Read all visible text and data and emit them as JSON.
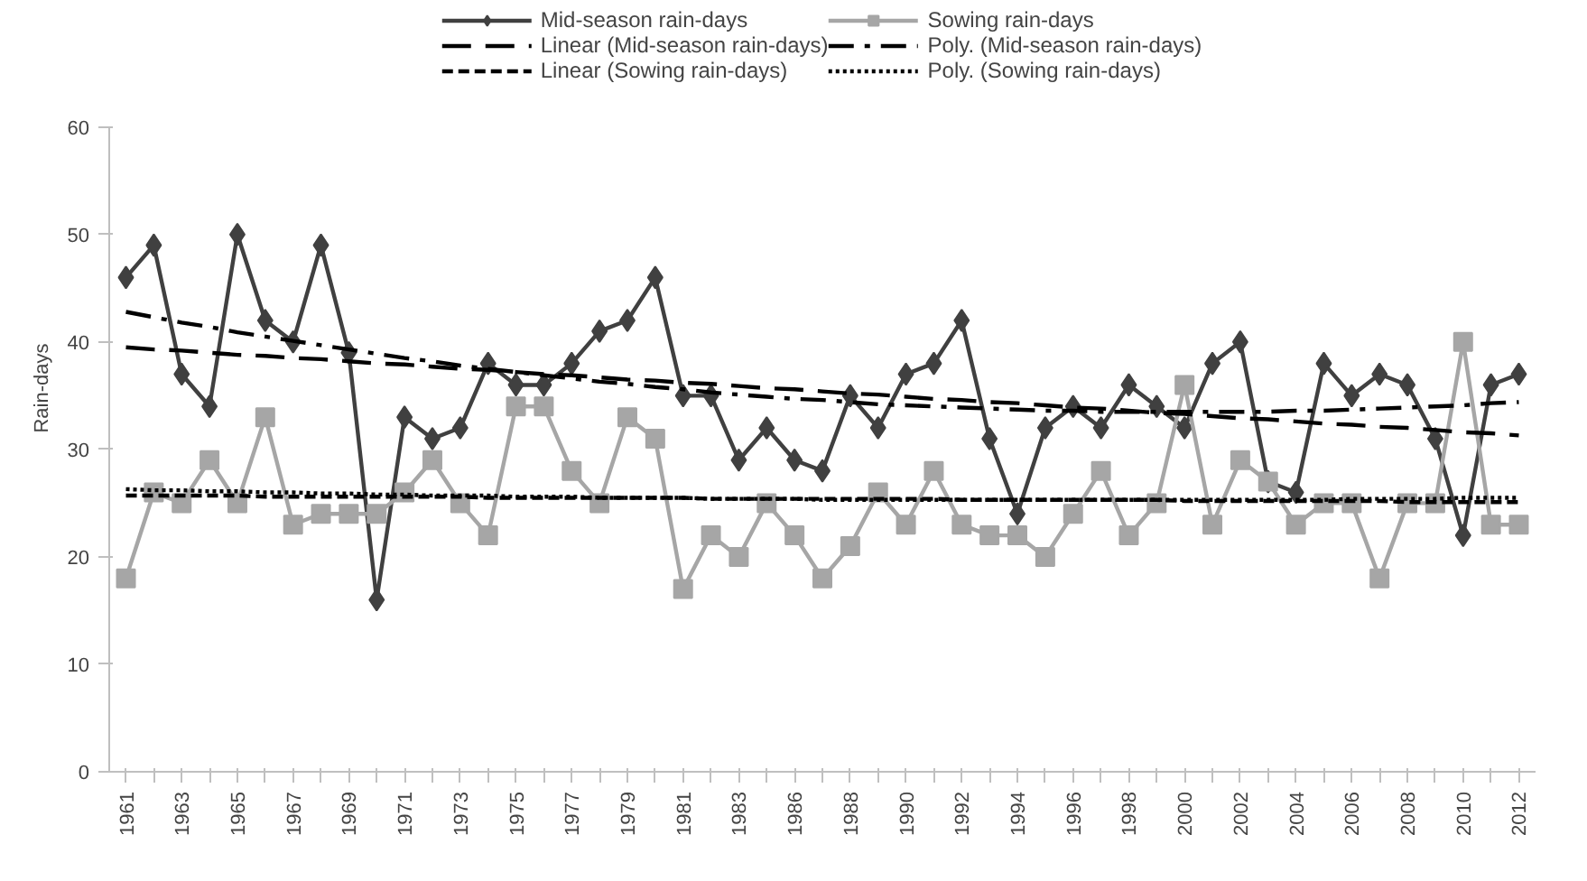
{
  "chart_data": {
    "type": "line",
    "ylabel": "Rain-days",
    "categories": [
      "1961",
      null,
      "1963",
      null,
      "1965",
      null,
      "1967",
      null,
      "1969",
      null,
      "1971",
      null,
      "1973",
      null,
      "1975",
      null,
      "1977",
      null,
      "1979",
      null,
      "1981",
      null,
      "1983",
      null,
      "1986",
      null,
      "1988",
      null,
      "1990",
      null,
      "1992",
      null,
      "1994",
      null,
      "1996",
      null,
      "1998",
      null,
      "2000",
      null,
      "2002",
      null,
      "2004",
      null,
      "2006",
      null,
      "2008",
      null,
      "2010",
      null,
      "2012"
    ],
    "series": [
      {
        "name": "Mid-season rain-days",
        "color": "#404040",
        "marker": "diamond",
        "line_style": "solid",
        "values": [
          46,
          49,
          37,
          34,
          50,
          42,
          40,
          49,
          39,
          16,
          33,
          31,
          32,
          38,
          36,
          36,
          38,
          41,
          42,
          46,
          35,
          35,
          29,
          32,
          29,
          28,
          35,
          32,
          37,
          38,
          42,
          31,
          24,
          32,
          34,
          32,
          36,
          34,
          32,
          38,
          40,
          27,
          26,
          38,
          35,
          37,
          36,
          31,
          22,
          36,
          37
        ]
      },
      {
        "name": "Sowing rain-days",
        "color": "#a6a6a6",
        "marker": "square",
        "line_style": "solid",
        "values": [
          18,
          26,
          25,
          29,
          25,
          33,
          23,
          24,
          24,
          24,
          26,
          29,
          25,
          22,
          34,
          34,
          28,
          25,
          33,
          31,
          17,
          22,
          20,
          25,
          22,
          18,
          21,
          26,
          23,
          28,
          23,
          22,
          22,
          20,
          24,
          28,
          22,
          25,
          36,
          23,
          29,
          27,
          23,
          25,
          25,
          18,
          25,
          25,
          40,
          23,
          23
        ]
      },
      {
        "name": "Linear (Mid-season rain-days)",
        "color": "#000000",
        "marker": "none",
        "line_style": "longdash",
        "values": [
          39.5,
          39.3,
          39.2,
          39.0,
          38.8,
          38.7,
          38.5,
          38.4,
          38.2,
          38.0,
          37.9,
          37.7,
          37.5,
          37.4,
          37.2,
          37.0,
          36.9,
          36.7,
          36.5,
          36.4,
          36.2,
          36.1,
          35.9,
          35.7,
          35.6,
          35.4,
          35.2,
          35.1,
          34.9,
          34.7,
          34.6,
          34.4,
          34.3,
          34.1,
          33.9,
          33.8,
          33.6,
          33.4,
          33.3,
          33.1,
          32.9,
          32.8,
          32.6,
          32.4,
          32.3,
          32.1,
          32.0,
          31.8,
          31.6,
          31.5,
          31.3
        ]
      },
      {
        "name": "Poly. (Mid-season rain-days)",
        "color": "#000000",
        "marker": "none",
        "line_style": "dashdot",
        "values": [
          42.8,
          42.3,
          41.8,
          41.4,
          40.9,
          40.5,
          40.1,
          39.7,
          39.3,
          38.9,
          38.5,
          38.2,
          37.8,
          37.5,
          37.2,
          36.9,
          36.6,
          36.3,
          36.1,
          35.8,
          35.6,
          35.3,
          35.1,
          34.9,
          34.7,
          34.6,
          34.4,
          34.2,
          34.1,
          34.0,
          33.9,
          33.8,
          33.7,
          33.6,
          33.6,
          33.5,
          33.5,
          33.5,
          33.5,
          33.5,
          33.5,
          33.5,
          33.6,
          33.6,
          33.7,
          33.8,
          33.9,
          34.0,
          34.1,
          34.3,
          34.4
        ]
      },
      {
        "name": "Linear (Sowing rain-days)",
        "color": "#000000",
        "marker": "none",
        "line_style": "dashed",
        "values": [
          25.7,
          25.7,
          25.7,
          25.7,
          25.7,
          25.6,
          25.6,
          25.6,
          25.6,
          25.6,
          25.6,
          25.6,
          25.6,
          25.5,
          25.5,
          25.5,
          25.5,
          25.5,
          25.5,
          25.5,
          25.5,
          25.4,
          25.4,
          25.4,
          25.4,
          25.4,
          25.4,
          25.4,
          25.4,
          25.4,
          25.3,
          25.3,
          25.3,
          25.3,
          25.3,
          25.3,
          25.3,
          25.3,
          25.2,
          25.2,
          25.2,
          25.2,
          25.2,
          25.2,
          25.2,
          25.2,
          25.1,
          25.1,
          25.1,
          25.1,
          25.1
        ]
      },
      {
        "name": "Poly. (Sowing rain-days)",
        "color": "#000000",
        "marker": "none",
        "line_style": "dotted",
        "values": [
          26.3,
          26.2,
          26.2,
          26.1,
          26.1,
          26.0,
          26.0,
          25.9,
          25.9,
          25.8,
          25.8,
          25.7,
          25.7,
          25.7,
          25.6,
          25.6,
          25.6,
          25.5,
          25.5,
          25.5,
          25.5,
          25.4,
          25.4,
          25.4,
          25.4,
          25.3,
          25.3,
          25.3,
          25.3,
          25.3,
          25.3,
          25.3,
          25.3,
          25.3,
          25.3,
          25.3,
          25.3,
          25.3,
          25.3,
          25.3,
          25.3,
          25.3,
          25.3,
          25.3,
          25.4,
          25.4,
          25.4,
          25.4,
          25.5,
          25.5,
          25.5
        ]
      }
    ],
    "ylim": [
      0,
      60
    ],
    "yticks": [
      0,
      10,
      20,
      30,
      40,
      50,
      60
    ],
    "grid": false,
    "legend": "top"
  }
}
